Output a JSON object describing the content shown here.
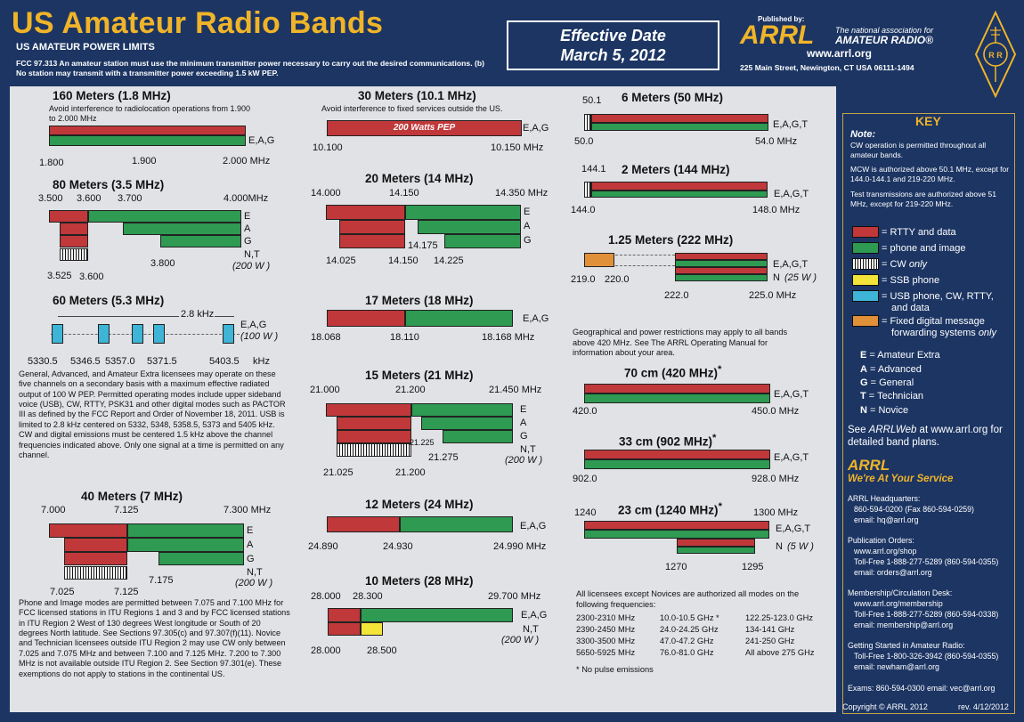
{
  "header": {
    "title": "US Amateur Radio Bands",
    "subtitle": "US AMATEUR POWER LIMITS",
    "rule": "FCC 97.313   An amateur station must use the minimum transmitter power necessary to carry out the desired communications.   (b) No station may transmit with a transmitter power exceeding 1.5 kW PEP.",
    "effective_label": "Effective Date",
    "effective_date": "March 5, 2012",
    "published_by": "Published by:",
    "arrl": "ARRL",
    "tagline1": "The national association for",
    "tagline2": "AMATEUR RADIO®",
    "website": "www.arrl.org",
    "address": "225 Main Street, Newington, CT  USA  06111-1494"
  },
  "colors": {
    "red": "#c0383a",
    "green": "#2e9a52",
    "yellow": "#f3e43a",
    "blue": "#3eb4d6",
    "orange": "#e1903a",
    "gold": "#f0b429",
    "navy": "#1c3563"
  },
  "chart_data": {
    "type": "table",
    "license_classes": {
      "E": "Amateur Extra",
      "A": "Advanced",
      "G": "General",
      "T": "Technician",
      "N": "Novice"
    },
    "bands": [
      {
        "name": "160 Meters (1.8 MHz)",
        "note": "Avoid interference to radiolocation operations from 1.900 to 2.000 MHz",
        "ticks": [
          "1.800",
          "1.900",
          "2.000  MHz"
        ],
        "classes": "E,A,G",
        "segments": [
          {
            "from": 1.8,
            "to": 2.0,
            "mode": "rtty-data",
            "classes": "E,A,G"
          },
          {
            "from": 1.8,
            "to": 2.0,
            "mode": "phone-image",
            "classes": "E,A,G"
          }
        ]
      },
      {
        "name": "80 Meters (3.5 MHz)",
        "ticks_top": [
          "3.500",
          "3.600",
          "3.700",
          "4.000MHz"
        ],
        "ticks_bottom": [
          "3.525",
          "3.600",
          "3.800"
        ],
        "rows": [
          "E",
          "A",
          "G",
          "N,T"
        ],
        "power": "(200 W )",
        "segments": [
          {
            "from": 3.5,
            "to": 3.6,
            "mode": "rtty-data",
            "classes": "E"
          },
          {
            "from": 3.6,
            "to": 4.0,
            "mode": "phone-image",
            "classes": "E"
          },
          {
            "from": 3.7,
            "to": 4.0,
            "mode": "phone-image",
            "classes": "A"
          },
          {
            "from": 3.8,
            "to": 4.0,
            "mode": "phone-image",
            "classes": "G"
          },
          {
            "from": 3.525,
            "to": 3.6,
            "mode": "cw-only",
            "classes": "N,T"
          }
        ]
      },
      {
        "name": "60 Meters (5.3 MHz)",
        "width_label": "2.8 kHz",
        "classes": "E,A,G",
        "power": "(100 W )",
        "ticks": [
          "5330.5",
          "5346.5",
          "5357.0",
          "5371.5",
          "5403.5",
          "kHz"
        ],
        "channels_khz": [
          5330.5,
          5346.5,
          5357.0,
          5371.5,
          5403.5
        ],
        "mode": "usb-cw-rtty-data",
        "text": "General, Advanced, and Amateur Extra licensees may operate on these five channels on a secondary basis with a maximum effective radiated output of 100 W PEP. Permitted operating modes include upper sideband voice (USB), CW, RTTY, PSK31 and other digital modes such as PACTOR III as defined by the FCC Report and Order of November 18, 2011. USB is limited to 2.8 kHz centered on 5332, 5348, 5358.5, 5373 and 5405 kHz. CW and digital emissions must be centered 1.5 kHz above the channel frequencies indicated above. Only one signal at a time is permitted on any channel."
      },
      {
        "name": "40 Meters (7 MHz)",
        "ticks_top": [
          "7.000",
          "7.125",
          "7.300  MHz"
        ],
        "ticks_bottom": [
          "7.025",
          "7.125",
          "7.175"
        ],
        "rows": [
          "E",
          "A",
          "G",
          "N,T"
        ],
        "power": "(200 W )",
        "segments": [
          {
            "from": 7.0,
            "to": 7.125,
            "mode": "rtty-data",
            "classes": "E"
          },
          {
            "from": 7.125,
            "to": 7.3,
            "mode": "phone-image",
            "classes": "E"
          },
          {
            "from": 7.125,
            "to": 7.3,
            "mode": "phone-image",
            "classes": "A"
          },
          {
            "from": 7.175,
            "to": 7.3,
            "mode": "phone-image",
            "classes": "G"
          },
          {
            "from": 7.025,
            "to": 7.125,
            "mode": "cw-only",
            "classes": "N,T"
          }
        ],
        "text": "Phone and Image modes are permitted between 7.075 and 7.100 MHz for FCC licensed stations in ITU Regions 1 and 3 and by FCC licensed stations in ITU Region 2 West of 130 degrees West longitude or South of 20 degrees North latitude. See Sections 97.305(c) and 97.307(f)(11). Novice and Technician licensees outside ITU Region 2 may use CW only between 7.025 and 7.075 MHz and between 7.100 and 7.125 MHz. 7.200 to 7.300 MHz is not available outside ITU Region 2. See Section 97.301(e). These exemptions do not apply to stations in the continental US."
      },
      {
        "name": "30 Meters (10.1 MHz)",
        "note": "Avoid interference to fixed services outside the US.",
        "bar_label": "200 Watts PEP",
        "classes": "E,A,G",
        "ticks": [
          "10.100",
          "10.150 MHz"
        ],
        "segments": [
          {
            "from": 10.1,
            "to": 10.15,
            "mode": "rtty-data",
            "classes": "E,A,G"
          }
        ]
      },
      {
        "name": "20 Meters (14 MHz)",
        "ticks_top": [
          "14.000",
          "14.150",
          "14.350 MHz"
        ],
        "ticks_bottom": [
          "14.025",
          "14.150",
          "14.175",
          "14.225"
        ],
        "rows": [
          "E",
          "A",
          "G"
        ],
        "segments": [
          {
            "from": 14.0,
            "to": 14.15,
            "mode": "rtty-data",
            "classes": "E"
          },
          {
            "from": 14.15,
            "to": 14.35,
            "mode": "phone-image",
            "classes": "E"
          },
          {
            "from": 14.175,
            "to": 14.35,
            "mode": "phone-image",
            "classes": "A"
          },
          {
            "from": 14.225,
            "to": 14.35,
            "mode": "phone-image",
            "classes": "G"
          }
        ]
      },
      {
        "name": "17 Meters (18 MHz)",
        "classes": "E,A,G",
        "ticks": [
          "18.068",
          "18.110",
          "18.168 MHz"
        ],
        "segments": [
          {
            "from": 18.068,
            "to": 18.11,
            "mode": "rtty-data",
            "classes": "E,A,G"
          },
          {
            "from": 18.11,
            "to": 18.168,
            "mode": "phone-image",
            "classes": "E,A,G"
          }
        ]
      },
      {
        "name": "15 Meters (21 MHz)",
        "ticks_top": [
          "21.000",
          "21.200",
          "21.450 MHz"
        ],
        "ticks_bottom": [
          "21.025",
          "21.200",
          "21.225",
          "21.275"
        ],
        "rows": [
          "E",
          "A",
          "G",
          "N,T"
        ],
        "power": "(200 W )",
        "segments": [
          {
            "from": 21.0,
            "to": 21.2,
            "mode": "rtty-data",
            "classes": "E"
          },
          {
            "from": 21.2,
            "to": 21.45,
            "mode": "phone-image",
            "classes": "E"
          },
          {
            "from": 21.225,
            "to": 21.45,
            "mode": "phone-image",
            "classes": "A"
          },
          {
            "from": 21.275,
            "to": 21.45,
            "mode": "phone-image",
            "classes": "G"
          },
          {
            "from": 21.025,
            "to": 21.2,
            "mode": "cw-only",
            "classes": "N,T"
          }
        ]
      },
      {
        "name": "12 Meters (24 MHz)",
        "classes": "E,A,G",
        "ticks": [
          "24.890",
          "24.930",
          "24.990 MHz"
        ],
        "segments": [
          {
            "from": 24.89,
            "to": 24.93,
            "mode": "rtty-data",
            "classes": "E,A,G"
          },
          {
            "from": 24.93,
            "to": 24.99,
            "mode": "phone-image",
            "classes": "E,A,G"
          }
        ]
      },
      {
        "name": "10 Meters (28 MHz)",
        "ticks_top": [
          "28.000",
          "28.300",
          "29.700 MHz"
        ],
        "ticks_bottom": [
          "28.000",
          "28.500"
        ],
        "classes": "E,A,G",
        "rows2": "N,T",
        "power": "(200 W )",
        "segments": [
          {
            "from": 28.0,
            "to": 28.3,
            "mode": "rtty-data",
            "classes": "E,A,G"
          },
          {
            "from": 28.3,
            "to": 29.7,
            "mode": "phone-image",
            "classes": "E,A,G"
          },
          {
            "from": 28.3,
            "to": 28.5,
            "mode": "ssb-phone",
            "classes": "N,T"
          }
        ]
      },
      {
        "name": "6 Meters (50 MHz)",
        "tick_top": "50.1",
        "ticks": [
          "50.0",
          "54.0  MHz"
        ],
        "classes": "E,A,G,T",
        "segments": [
          {
            "from": 50.0,
            "to": 50.1,
            "mode": "cw-only"
          },
          {
            "from": 50.1,
            "to": 54.0,
            "mode": "rtty-data"
          },
          {
            "from": 50.1,
            "to": 54.0,
            "mode": "phone-image"
          }
        ]
      },
      {
        "name": "2 Meters (144 MHz)",
        "tick_top": "144.1",
        "ticks": [
          "144.0",
          "148.0  MHz"
        ],
        "classes": "E,A,G,T",
        "segments": [
          {
            "from": 144.0,
            "to": 144.1,
            "mode": "cw-only"
          },
          {
            "from": 144.1,
            "to": 148.0,
            "mode": "rtty-data"
          },
          {
            "from": 144.1,
            "to": 148.0,
            "mode": "phone-image"
          }
        ]
      },
      {
        "name": "1.25 Meters (222 MHz)",
        "ticks": [
          "219.0",
          "220.0",
          "222.0",
          "225.0  MHz"
        ],
        "classes": "E,A,G,T",
        "classes2": "N",
        "power": "(25 W )",
        "segments": [
          {
            "from": 219.0,
            "to": 220.0,
            "mode": "fixed-digital-message"
          },
          {
            "from": 222.0,
            "to": 225.0,
            "mode": "rtty-data"
          },
          {
            "from": 222.0,
            "to": 225.0,
            "mode": "phone-image"
          }
        ]
      },
      {
        "name": "70 cm (420 MHz)",
        "star": "*",
        "ticks": [
          "420.0",
          "450.0  MHz"
        ],
        "classes": "E,A,G,T",
        "segments": [
          {
            "from": 420.0,
            "to": 450.0,
            "mode": "rtty-data"
          },
          {
            "from": 420.0,
            "to": 450.0,
            "mode": "phone-image"
          }
        ]
      },
      {
        "name": "33 cm (902 MHz)",
        "star": "*",
        "ticks": [
          "902.0",
          "928.0  MHz"
        ],
        "classes": "E,A,G,T",
        "segments": [
          {
            "from": 902.0,
            "to": 928.0,
            "mode": "rtty-data"
          },
          {
            "from": 902.0,
            "to": 928.0,
            "mode": "phone-image"
          }
        ]
      },
      {
        "name": "23 cm (1240 MHz)",
        "star": "*",
        "ticks": [
          "1240",
          "1300  MHz",
          "1270",
          "1295"
        ],
        "classes": "E,A,G,T",
        "classes2": "N",
        "power": "(5 W )",
        "segments": [
          {
            "from": 1240,
            "to": 1300,
            "mode": "rtty-data"
          },
          {
            "from": 1240,
            "to": 1300,
            "mode": "phone-image"
          },
          {
            "from": 1270,
            "to": 1295,
            "mode": "rtty-data",
            "classes": "N"
          },
          {
            "from": 1270,
            "to": 1295,
            "mode": "phone-image",
            "classes": "N"
          }
        ]
      }
    ],
    "geo_note": "Geographical and power restrictions may apply to all bands above 420 MHz. See The ARRL Operating Manual for information about your area.",
    "all_modes_note": "All licensees except Novices are authorized all modes on the following frequencies:",
    "freq_table": [
      [
        "2300-2310 MHz",
        "10.0-10.5 GHz *",
        "122.25-123.0 GHz"
      ],
      [
        "2390-2450 MHz",
        "24.0-24.25 GHz",
        "134-141 GHz"
      ],
      [
        "3300-3500 MHz",
        "47.0-47.2 GHz",
        "241-250 GHz"
      ],
      [
        "5650-5925 MHz",
        "76.0-81.0 GHz",
        "All above 275 GHz"
      ]
    ],
    "no_pulse": "* No pulse emissions"
  },
  "key": {
    "title": "KEY",
    "note_label": "Note:",
    "note1": "CW operation is permitted throughout all amateur bands.",
    "note2": "MCW is authorized above 50.1 MHz, except for 144.0-144.1 and 219-220 MHz.",
    "note3": "Test transmissions are authorized above 51 MHz, except for 219-220 MHz.",
    "legend": [
      {
        "swatch": "red",
        "label": "= RTTY and data"
      },
      {
        "swatch": "green",
        "label": "= phone and image"
      },
      {
        "swatch": "cw",
        "label": "= CW ",
        "label_it": "only"
      },
      {
        "swatch": "yellow",
        "label": "= SSB phone"
      },
      {
        "swatch": "blue",
        "label": "= USB phone, CW, RTTY,",
        "label2": "and  data"
      },
      {
        "swatch": "orange",
        "label": "= Fixed digital message",
        "label2": "forwarding systems ",
        "label2_it": "only"
      }
    ],
    "classes": [
      {
        "letter": "E",
        "rest": " = Amateur Extra"
      },
      {
        "letter": "A",
        "rest": " = Advanced"
      },
      {
        "letter": "G",
        "rest": " = General"
      },
      {
        "letter": "T",
        "rest": " = Technician"
      },
      {
        "letter": "N",
        "rest": " = Novice"
      }
    ],
    "see1": "See ",
    "see_it": "ARRLWeb",
    "see2": " at www.arrl.org for detailed band plans.",
    "arrl": "ARRL",
    "service": "We're At Your Service",
    "contacts": [
      {
        "title": "ARRL Headquarters:",
        "lines": [
          "860-594-0200  (Fax 860-594-0259)",
          "email:  hq@arrl.org"
        ]
      },
      {
        "title": "Publication Orders:",
        "lines": [
          "www.arrl.org/shop",
          "Toll-Free 1-888-277-5289 (860-594-0355)",
          "email: orders@arrl.org"
        ]
      },
      {
        "title": "Membership/Circulation Desk:",
        "lines": [
          "www.arrl.org/membership",
          "Toll-Free 1-888-277-5289 (860-594-0338)",
          "email: membership@arrl.org"
        ]
      },
      {
        "title": "Getting Started in Amateur Radio:",
        "lines": [
          "Toll-Free 1-800-326-3942 (860-594-0355)",
          "email: newham@arrl.org"
        ]
      }
    ],
    "exams": "Exams:  860-594-0300   email: vec@arrl.org",
    "copyright": "Copyright © ARRL 2012",
    "rev": "rev. 4/12/2012"
  }
}
